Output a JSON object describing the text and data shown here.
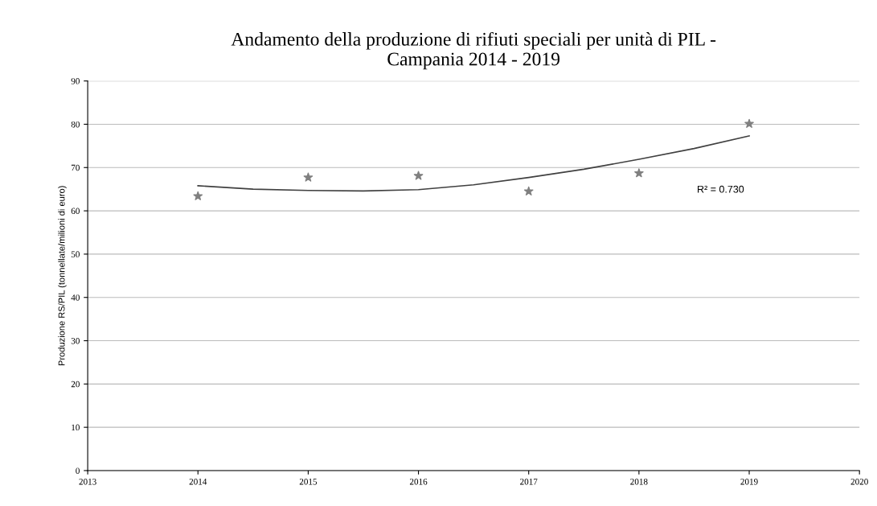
{
  "chart_data": {
    "type": "scatter",
    "title": "Andamento della produzione di rifiuti speciali per unità di PIL -\nCampania 2014 - 2019",
    "ylabel": "Produzione RS/PIL (tonnellate/milioni di euro)",
    "series": [
      {
        "color": "#808080",
        "marker": "star",
        "x": [
          2014,
          2015,
          2016,
          2017,
          2018,
          2019
        ],
        "values": [
          63.4,
          67.7,
          68.1,
          64.5,
          68.7,
          80.1
        ]
      },
      {
        "type": "line",
        "color": "#404040",
        "marker": "none",
        "x": [
          2014,
          2014.5,
          2015,
          2015.5,
          2016,
          2016.5,
          2017,
          2017.5,
          2018,
          2018.5,
          2019
        ],
        "values": [
          65.8,
          65.0,
          64.7,
          64.6,
          64.9,
          66.0,
          67.7,
          69.6,
          71.9,
          74.4,
          77.3
        ]
      }
    ],
    "annotations": [
      "R² = 0.730"
    ],
    "xlim": [
      2013,
      2020
    ],
    "xticks": [
      2013,
      2014,
      2015,
      2016,
      2017,
      2018,
      2019,
      2020
    ],
    "ylim": [
      0,
      90
    ],
    "yticks": [
      0,
      10,
      20,
      30,
      40,
      50,
      60,
      70,
      80,
      90
    ],
    "grid": "y",
    "legend": false
  }
}
